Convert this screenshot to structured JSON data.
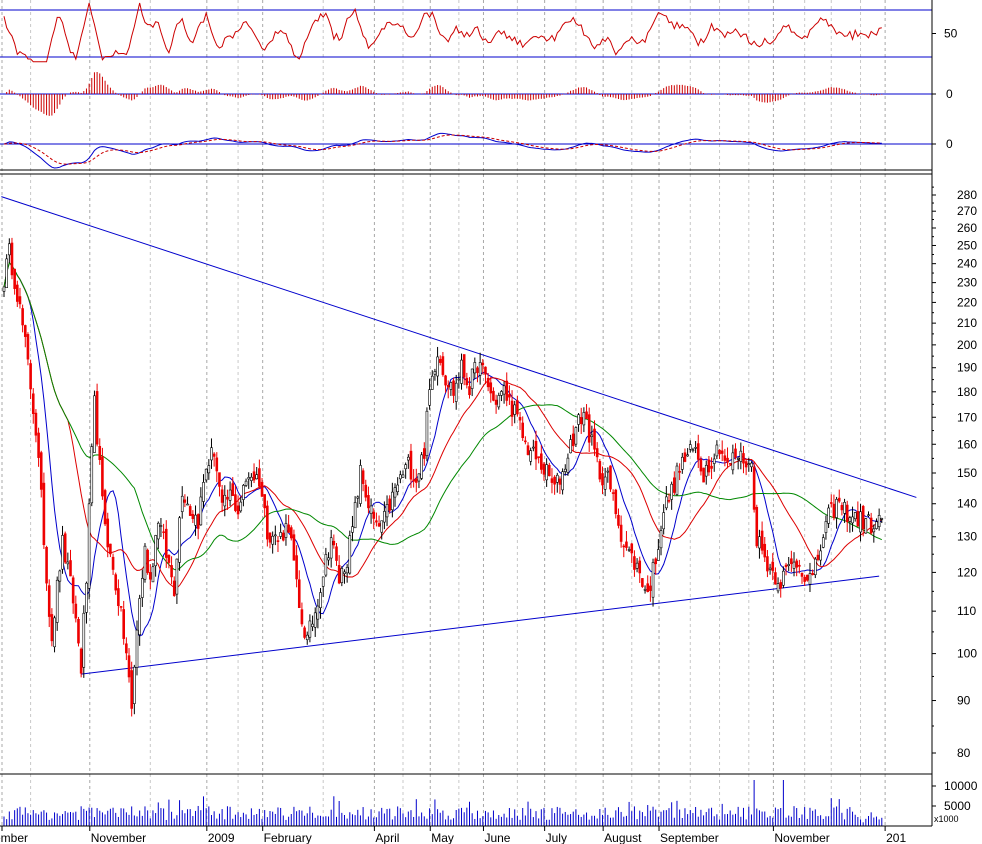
{
  "chart_data": {
    "type": "candlestick",
    "grid": true,
    "price_axis": {
      "scale": "log",
      "ylim": [
        75,
        290
      ],
      "ticks": [
        280,
        270,
        260,
        250,
        240,
        230,
        220,
        210,
        200,
        190,
        180,
        170,
        160,
        150,
        140,
        130,
        120,
        110,
        100,
        90,
        80
      ]
    },
    "x_axis": {
      "labels": [
        {
          "label": "ember",
          "index": 0
        },
        {
          "label": "November",
          "index": 33
        },
        {
          "label": "2009",
          "index": 77
        },
        {
          "label": "February",
          "index": 98
        },
        {
          "label": "April",
          "index": 140
        },
        {
          "label": "May",
          "index": 161
        },
        {
          "label": "June",
          "index": 181
        },
        {
          "label": "July",
          "index": 204
        },
        {
          "label": "August",
          "index": 226
        },
        {
          "label": "September",
          "index": 247
        },
        {
          "label": "November",
          "index": 290
        },
        {
          "label": "201",
          "index": 332
        }
      ]
    },
    "price_anchors": [
      [
        0,
        232
      ],
      [
        2,
        246
      ],
      [
        5,
        225
      ],
      [
        8,
        200
      ],
      [
        12,
        165
      ],
      [
        16,
        118
      ],
      [
        18,
        104
      ],
      [
        22,
        128
      ],
      [
        26,
        113
      ],
      [
        29,
        97
      ],
      [
        31,
        118
      ],
      [
        34,
        175
      ],
      [
        37,
        140
      ],
      [
        40,
        124
      ],
      [
        43,
        113
      ],
      [
        46,
        100
      ],
      [
        48,
        88
      ],
      [
        50,
        106
      ],
      [
        53,
        126
      ],
      [
        55,
        118
      ],
      [
        58,
        136
      ],
      [
        61,
        125
      ],
      [
        64,
        116
      ],
      [
        67,
        145
      ],
      [
        70,
        138
      ],
      [
        73,
        135
      ],
      [
        76,
        152
      ],
      [
        79,
        158
      ],
      [
        82,
        138
      ],
      [
        85,
        143
      ],
      [
        88,
        138
      ],
      [
        92,
        150
      ],
      [
        96,
        148
      ],
      [
        99,
        132
      ],
      [
        103,
        129
      ],
      [
        107,
        134
      ],
      [
        111,
        110
      ],
      [
        114,
        103
      ],
      [
        117,
        110
      ],
      [
        120,
        120
      ],
      [
        123,
        130
      ],
      [
        126,
        118
      ],
      [
        129,
        124
      ],
      [
        131,
        132
      ],
      [
        134,
        150
      ],
      [
        137,
        140
      ],
      [
        140,
        132
      ],
      [
        143,
        135
      ],
      [
        146,
        142
      ],
      [
        149,
        148
      ],
      [
        152,
        153
      ],
      [
        155,
        148
      ],
      [
        158,
        158
      ],
      [
        160,
        180
      ],
      [
        163,
        198
      ],
      [
        166,
        186
      ],
      [
        169,
        180
      ],
      [
        172,
        190
      ],
      [
        175,
        182
      ],
      [
        178,
        192
      ],
      [
        181,
        186
      ],
      [
        184,
        176
      ],
      [
        188,
        180
      ],
      [
        192,
        172
      ],
      [
        196,
        160
      ],
      [
        200,
        155
      ],
      [
        204,
        150
      ],
      [
        207,
        145
      ],
      [
        210,
        150
      ],
      [
        213,
        160
      ],
      [
        216,
        168
      ],
      [
        218,
        172
      ],
      [
        221,
        160
      ],
      [
        224,
        150
      ],
      [
        227,
        148
      ],
      [
        230,
        138
      ],
      [
        233,
        128
      ],
      [
        236,
        124
      ],
      [
        239,
        120
      ],
      [
        242,
        114
      ],
      [
        245,
        124
      ],
      [
        248,
        138
      ],
      [
        251,
        144
      ],
      [
        254,
        152
      ],
      [
        257,
        156
      ],
      [
        260,
        158
      ],
      [
        263,
        150
      ],
      [
        266,
        155
      ],
      [
        269,
        160
      ],
      [
        272,
        152
      ],
      [
        275,
        156
      ],
      [
        278,
        155
      ],
      [
        281,
        152
      ],
      [
        283,
        130
      ],
      [
        286,
        124
      ],
      [
        289,
        120
      ],
      [
        292,
        118
      ],
      [
        295,
        121
      ],
      [
        298,
        123
      ],
      [
        301,
        120
      ],
      [
        304,
        118
      ],
      [
        307,
        127
      ],
      [
        310,
        136
      ],
      [
        313,
        140
      ],
      [
        316,
        138
      ],
      [
        319,
        136
      ],
      [
        322,
        135
      ],
      [
        325,
        134
      ],
      [
        328,
        133
      ],
      [
        330,
        136
      ]
    ],
    "trendlines": [
      {
        "name": "upper",
        "from": [
          -1,
          279
        ],
        "to": [
          343,
          142
        ]
      },
      {
        "name": "lower",
        "from": [
          29,
          95.5
        ],
        "to": [
          329,
          119
        ]
      }
    ],
    "moving_averages": [
      {
        "period": 10,
        "color": "#0000CC"
      },
      {
        "period": 25,
        "color": "#DD0000"
      },
      {
        "period": 50,
        "color": "#008800"
      }
    ],
    "indicators": [
      {
        "panel": "rsi",
        "levels": [
          70,
          30
        ],
        "tick": 50,
        "color": "#CC0000"
      },
      {
        "panel": "histogram",
        "tick": 0,
        "color": "#CC0000"
      },
      {
        "panel": "macd",
        "tick": 0,
        "colors": [
          "#0000CC",
          "#CC0000"
        ]
      }
    ],
    "volume": {
      "unit_label": "x1000",
      "ticks": [
        10000,
        5000
      ]
    }
  },
  "colors": {
    "up_candle": "#000000",
    "down_candle": "#EE0000",
    "trendline": "#0000CC",
    "grid": "#A8A8A8"
  }
}
